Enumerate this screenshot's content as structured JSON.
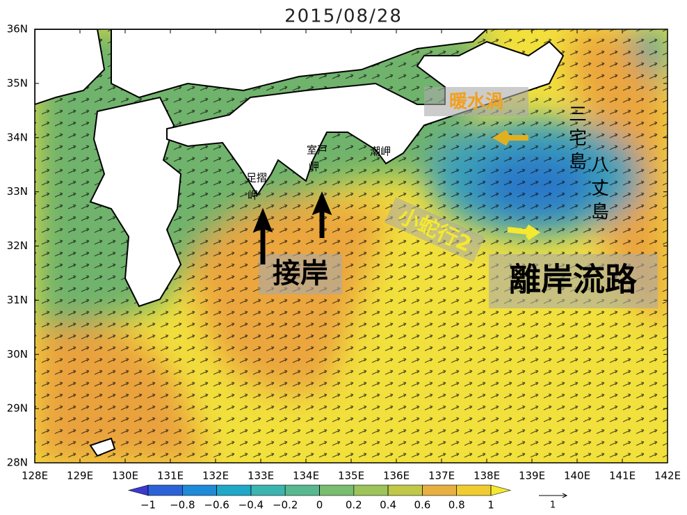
{
  "title": "2015/08/28",
  "map": {
    "lat_ticks": [
      "28N",
      "29N",
      "30N",
      "31N",
      "32N",
      "33N",
      "34N",
      "35N",
      "36N"
    ],
    "lon_ticks": [
      "128E",
      "129E",
      "130E",
      "131E",
      "132E",
      "133E",
      "134E",
      "135E",
      "136E",
      "137E",
      "138E",
      "139E",
      "140E",
      "141E",
      "142E"
    ]
  },
  "colorbar": {
    "ticks": [
      {
        "value": -1,
        "label": "−1"
      },
      {
        "value": -0.8,
        "label": "−0.8"
      },
      {
        "value": -0.6,
        "label": "−0.6"
      },
      {
        "value": -0.4,
        "label": "−0.4"
      },
      {
        "value": -0.2,
        "label": "−0.2"
      },
      0,
      0.2,
      0.4,
      0.6,
      0.8,
      1
    ],
    "colors": [
      "#3a3ad0",
      "#2c62d8",
      "#1e8ad8",
      "#20a8c8",
      "#3cb4b0",
      "#58b890",
      "#78bd70",
      "#9cc45a",
      "#c0c848",
      "#e8b040",
      "#f0cc30",
      "#f5e830"
    ]
  },
  "vector_scale": {
    "label": "1"
  },
  "annotations": {
    "warm_eddy": "暖水渦",
    "miyake": "三宅島",
    "hachijo": "八丈島",
    "ashizuri": [
      "足摺",
      "岬"
    ],
    "muroto": [
      "室戸",
      "岬"
    ],
    "shiono": "潮岬",
    "small_meander": "小蛇行2",
    "nearshore": "接岸",
    "offshore_path": "離岸流路"
  }
}
